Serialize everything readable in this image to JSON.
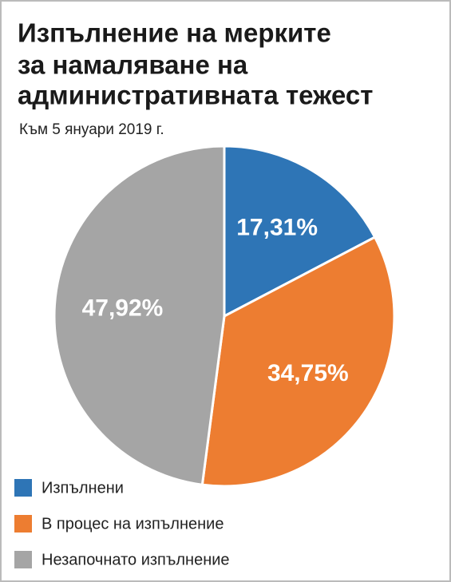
{
  "chart_data": {
    "type": "pie",
    "title": [
      "Изпълнение на мерките",
      "за намаляване на",
      "административната тежест"
    ],
    "subtitle": "Към 5 януари 2019 г.",
    "categories": [
      "Изпълнени",
      "В процес на изпълнение",
      "Незапочнато изпълнение"
    ],
    "values": [
      17.31,
      34.75,
      47.92
    ],
    "value_labels": [
      "17,31%",
      "34,75%",
      "47,92%"
    ],
    "colors": [
      "#2e75b6",
      "#ed7d31",
      "#a5a5a5"
    ],
    "legend": "bottom-left"
  }
}
